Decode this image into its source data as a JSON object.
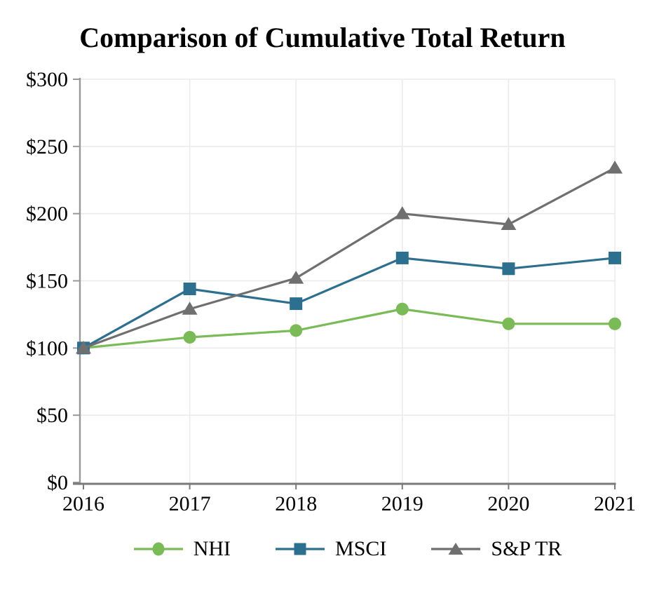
{
  "page": {
    "background": "#ffffff"
  },
  "chart_data": {
    "type": "line",
    "title": "Comparison of Cumulative Total Return",
    "categories": [
      "2016",
      "2017",
      "2018",
      "2019",
      "2020",
      "2021"
    ],
    "series": [
      {
        "name": "NHI",
        "marker": "circle",
        "color": "#7ABB57",
        "values": [
          100,
          108,
          113,
          129,
          118,
          118
        ]
      },
      {
        "name": "MSCI",
        "marker": "square",
        "color": "#2D6F8E",
        "values": [
          100,
          144,
          133,
          167,
          159,
          167
        ]
      },
      {
        "name": "S&P TR",
        "marker": "triangle",
        "color": "#6F6F6F",
        "values": [
          100,
          129,
          152,
          200,
          192,
          234
        ]
      }
    ],
    "xlabel": "",
    "ylabel": "",
    "ylim": [
      0,
      300
    ],
    "ytick_step": 50,
    "ytick_prefix": "$",
    "grid": true,
    "legend_position": "bottom",
    "colors": {
      "gridline": "#EBEBEB",
      "y_axis": "#999999",
      "x_axis": "#7A7A7A",
      "tick_text": "#000000",
      "title_text": "#000000"
    }
  }
}
